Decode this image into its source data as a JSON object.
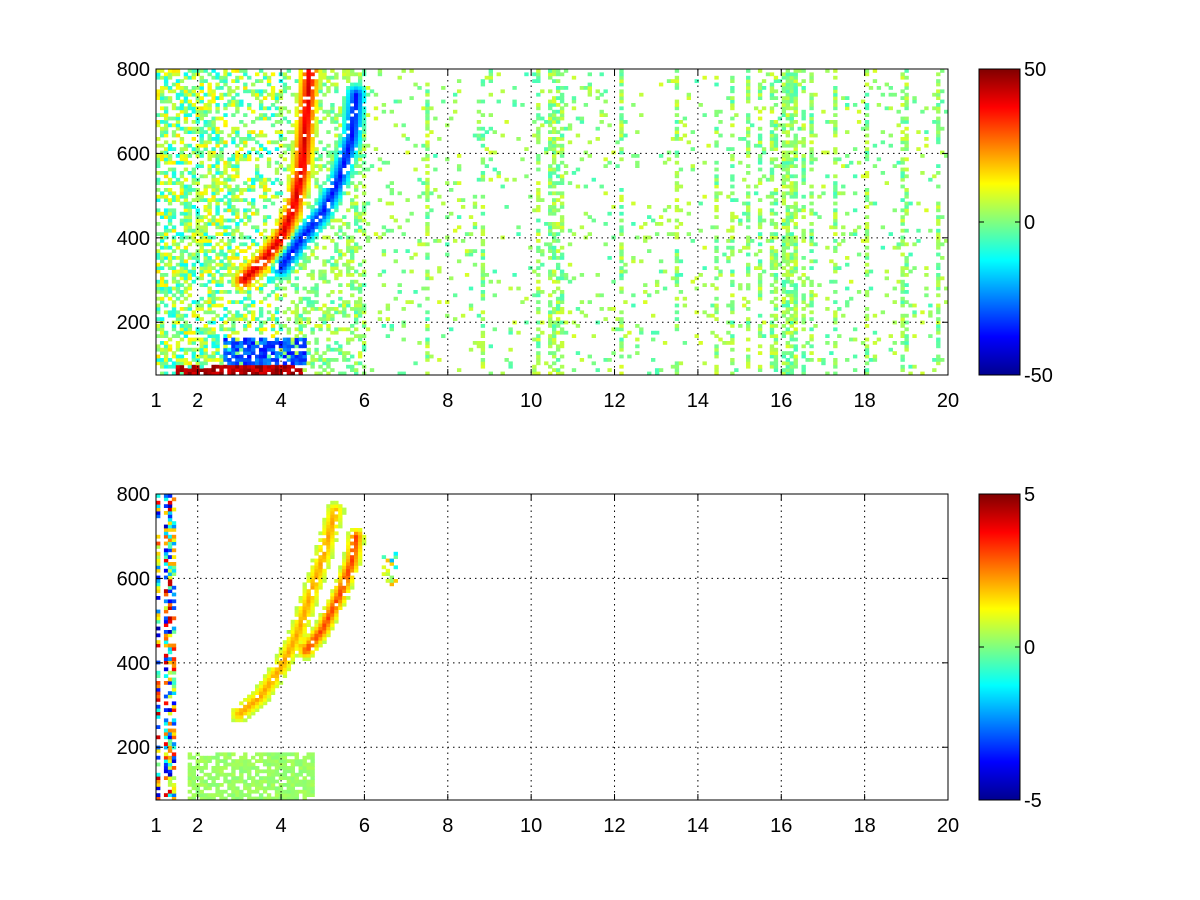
{
  "chart_data": [
    {
      "type": "heatmap",
      "xlim": [
        1,
        20
      ],
      "ylim": [
        75,
        800
      ],
      "x_ticks": [
        1,
        2,
        4,
        6,
        8,
        10,
        12,
        14,
        16,
        18,
        20
      ],
      "x_tick_labels": [
        "1",
        "2",
        "4",
        "6",
        "8",
        "10",
        "12",
        "14",
        "16",
        "18",
        "20"
      ],
      "y_ticks": [
        200,
        400,
        600,
        800
      ],
      "y_tick_labels": [
        "200",
        "400",
        "600",
        "800"
      ],
      "grid": true,
      "colormap": "jet",
      "colorbar": {
        "limits": [
          -50,
          50
        ],
        "ticks": [
          -50,
          0,
          50
        ],
        "tick_labels": [
          "-50",
          "0",
          "50"
        ]
      },
      "features": [
        {
          "kind": "ridge",
          "sign": "positive",
          "points": [
            [
              3.1,
              300
            ],
            [
              3.6,
              350
            ],
            [
              4.0,
              400
            ],
            [
              4.3,
              470
            ],
            [
              4.5,
              560
            ],
            [
              4.6,
              680
            ],
            [
              4.7,
              800
            ]
          ]
        },
        {
          "kind": "ridge",
          "sign": "negative",
          "points": [
            [
              4.0,
              330
            ],
            [
              4.5,
              400
            ],
            [
              5.0,
              460
            ],
            [
              5.4,
              540
            ],
            [
              5.7,
              640
            ],
            [
              5.8,
              740
            ]
          ]
        },
        {
          "kind": "band",
          "sign": "positive",
          "x": [
            1.5,
            4.5
          ],
          "y": [
            75,
            100
          ]
        },
        {
          "kind": "band",
          "sign": "negative",
          "x": [
            2.6,
            4.6
          ],
          "y": [
            100,
            160
          ]
        }
      ]
    },
    {
      "type": "heatmap",
      "xlim": [
        1,
        20
      ],
      "ylim": [
        75,
        800
      ],
      "x_ticks": [
        1,
        2,
        4,
        6,
        8,
        10,
        12,
        14,
        16,
        18,
        20
      ],
      "x_tick_labels": [
        "1",
        "2",
        "4",
        "6",
        "8",
        "10",
        "12",
        "14",
        "16",
        "18",
        "20"
      ],
      "y_ticks": [
        200,
        400,
        600,
        800
      ],
      "y_tick_labels": [
        "200",
        "400",
        "600",
        "800"
      ],
      "grid": true,
      "colormap": "jet",
      "colorbar": {
        "limits": [
          -5,
          5
        ],
        "ticks": [
          -5,
          0,
          5
        ],
        "tick_labels": [
          "-5",
          "0",
          "5"
        ]
      },
      "features": [
        {
          "kind": "ridge",
          "sign": "positive",
          "points": [
            [
              3.0,
              280
            ],
            [
              3.5,
              320
            ],
            [
              4.0,
              390
            ],
            [
              4.4,
              470
            ],
            [
              4.7,
              560
            ],
            [
              5.0,
              650
            ],
            [
              5.3,
              760
            ]
          ]
        },
        {
          "kind": "ridge",
          "sign": "positive_high",
          "points": [
            [
              4.6,
              430
            ],
            [
              5.0,
              480
            ],
            [
              5.4,
              560
            ],
            [
              5.7,
              640
            ],
            [
              5.8,
              700
            ]
          ]
        },
        {
          "kind": "band",
          "sign": "neutral",
          "x": [
            1.8,
            4.8
          ],
          "y": [
            75,
            190
          ]
        }
      ]
    }
  ]
}
